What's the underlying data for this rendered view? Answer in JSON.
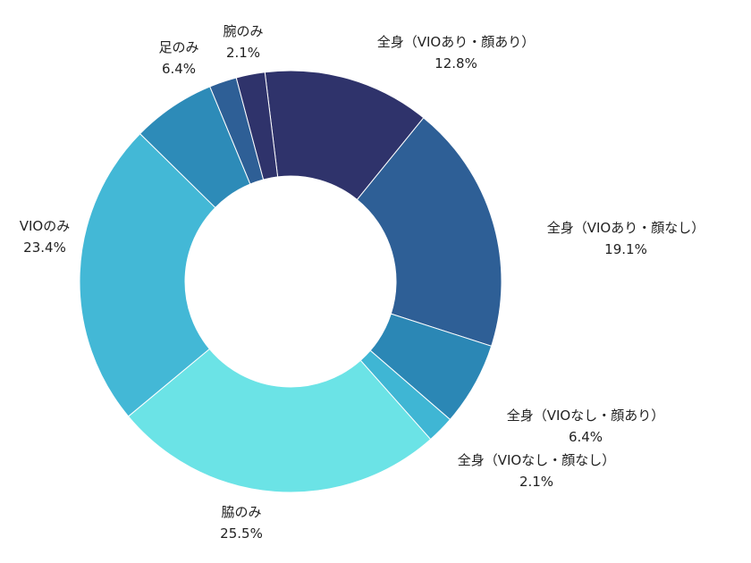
{
  "chart_data": {
    "type": "pie",
    "variant": "donut",
    "start_angle_deg": -7,
    "direction": "clockwise",
    "slices": [
      {
        "label": "全身（VIOあり・顔あり）",
        "value": 12.8,
        "value_text": "12.8%",
        "color": "#2f336b"
      },
      {
        "label": "全身（VIOあり・顔なし）",
        "value": 19.1,
        "value_text": "19.1%",
        "color": "#2e5f96"
      },
      {
        "label": "全身（VIOなし・顔あり）",
        "value": 6.4,
        "value_text": "6.4%",
        "color": "#2b87b5"
      },
      {
        "label": "全身（VIOなし・顔なし）",
        "value": 2.1,
        "value_text": "2.1%",
        "color": "#3fb6d4"
      },
      {
        "label": "脇のみ",
        "value": 25.5,
        "value_text": "25.5%",
        "color": "#6be3e6"
      },
      {
        "label": "VIOのみ",
        "value": 23.4,
        "value_text": "23.4%",
        "color": "#43b8d6"
      },
      {
        "label": "足のみ",
        "value": 6.4,
        "value_text": "6.4%",
        "color": "#2d8bb8"
      },
      {
        "label": "腕のみ",
        "value": 2.1,
        "value_text": "2.1%",
        "color": "#2e5f96"
      },
      {
        "label": "",
        "value": 2.2,
        "value_text": "",
        "color": "#2f336b"
      }
    ],
    "legend": "none"
  }
}
